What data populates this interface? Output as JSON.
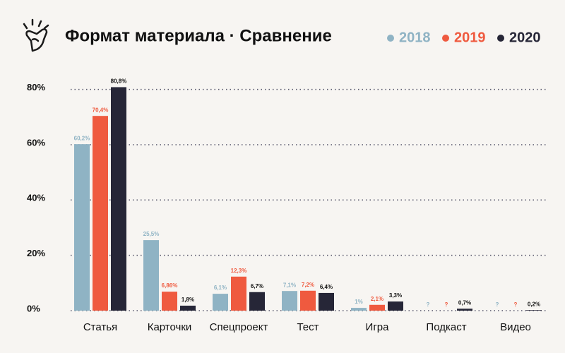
{
  "chart_data": {
    "type": "bar",
    "title": "Формат материала · Сравнение",
    "categories": [
      "Статья",
      "Карточки",
      "Спецпроект",
      "Тест",
      "Игра",
      "Подкаст",
      "Видео"
    ],
    "series": [
      {
        "name": "2018",
        "color": "#8fb3c4",
        "values": [
          60.2,
          25.5,
          6.1,
          7.1,
          1,
          null,
          null
        ],
        "value_labels": [
          "60,2%",
          "25,5%",
          "6,1%",
          "7,1%",
          "1%",
          "?",
          "?"
        ]
      },
      {
        "name": "2019",
        "color": "#ef5a3f",
        "values": [
          70.4,
          6.86,
          12.3,
          7.2,
          2.1,
          null,
          null
        ],
        "value_labels": [
          "70,4%",
          "6,86%",
          "12,3%",
          "7,2%",
          "2,1%",
          "?",
          "?"
        ]
      },
      {
        "name": "2020",
        "color": "#262637",
        "values": [
          80.8,
          1.8,
          6.7,
          6.4,
          3.3,
          0.7,
          0.2
        ],
        "value_labels": [
          "80,8%",
          "1,8%",
          "6,7%",
          "6,4%",
          "3,3%",
          "0,7%",
          "0,2%"
        ]
      }
    ],
    "ylim": [
      0,
      85
    ],
    "yticks": [
      {
        "value": 0,
        "label": "0%"
      },
      {
        "value": 20,
        "label": "20%"
      },
      {
        "value": 40,
        "label": "40%"
      },
      {
        "value": 60,
        "label": "60%"
      },
      {
        "value": 80,
        "label": "80%"
      }
    ],
    "grid": true,
    "legend": "top-right"
  }
}
